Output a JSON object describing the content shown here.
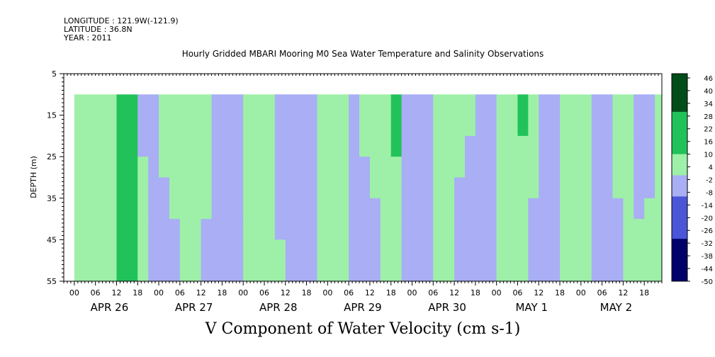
{
  "header": {
    "longitude": "LONGITUDE : 121.9W(-121.9)",
    "latitude": "LATITUDE : 36.8N",
    "year": "YEAR : 2011"
  },
  "title": "Hourly Gridded MBARI Mooring M0 Sea Water Temperature and Salinity Observations",
  "footer_label": "V Component of Water Velocity (cm s-1)",
  "chart_data": {
    "type": "heatmap",
    "title": "Hourly Gridded MBARI Mooring M0 Sea Water Temperature and Salinity Observations",
    "xlabel": "",
    "ylabel": "DEPTH (m)",
    "colorbar_label": "V Component of Water Velocity (cm s-1)",
    "ylim": [
      5,
      55
    ],
    "y_inverted": true,
    "y_ticks": [
      5,
      15,
      25,
      35,
      45,
      55
    ],
    "data_depth_range": [
      10,
      55
    ],
    "x_start": "2011-04-25T21:00",
    "x_end": "2011-05-02T23:00",
    "data_x_start": "2011-04-26T00:00",
    "data_x_end": "2011-05-02T22:00",
    "x_hour_ticks": [
      "00",
      "06",
      "12",
      "18"
    ],
    "x_day_labels": [
      "APR 26",
      "APR 27",
      "APR 28",
      "APR 29",
      "APR 30",
      "MAY  1",
      "MAY  2"
    ],
    "colorbar_levels": [
      48,
      46,
      44,
      42,
      40,
      38,
      36,
      34,
      32,
      30,
      28,
      26,
      24,
      22,
      20,
      18,
      16,
      14,
      12,
      10,
      8,
      6,
      4,
      2,
      0,
      -2,
      -4,
      -6,
      -8,
      -10,
      -12,
      -14,
      -16,
      -18,
      -20,
      -22,
      -24,
      -26,
      -28,
      -30,
      -32,
      -34,
      -36,
      -38,
      -40,
      -42,
      -44,
      -46,
      -48,
      -50
    ],
    "colorbar_tick_labels": [
      "46",
      "40",
      "34",
      "28",
      "22",
      "16",
      "10",
      "4",
      "-2",
      "-8",
      "-14",
      "-20",
      "-26",
      "-32",
      "-38",
      "-44",
      "-50"
    ],
    "colors": {
      "strong_positive": "#004d1a",
      "positive": "#22c25a",
      "weak_positive": "#9ef0a8",
      "weak_negative": "#a9aef5",
      "negative": "#4a55d8",
      "strong_negative": "#00006b"
    },
    "columns": [
      {
        "time": "2011-04-26T00:00",
        "v_surface": 6,
        "v_bottom": 2
      },
      {
        "time": "2011-04-26T03:00",
        "v_surface": 4,
        "v_bottom": 6
      },
      {
        "time": "2011-04-26T06:00",
        "v_surface": 8,
        "v_bottom": 8
      },
      {
        "time": "2011-04-26T09:00",
        "v_surface": 10,
        "v_bottom": 8
      },
      {
        "time": "2011-04-26T12:00",
        "v_surface": 14,
        "v_bottom": 10
      },
      {
        "time": "2011-04-26T15:00",
        "v_surface": 10,
        "v_bottom": 12
      },
      {
        "time": "2011-04-26T18:00",
        "v_surface": -6,
        "v_bottom": 10
      },
      {
        "time": "2011-04-26T21:00",
        "v_surface": -8,
        "v_bottom": -2
      },
      {
        "time": "2011-04-27T00:00",
        "v_surface": 4,
        "v_bottom": -6
      },
      {
        "time": "2011-04-27T03:00",
        "v_surface": 8,
        "v_bottom": -4
      },
      {
        "time": "2011-04-27T06:00",
        "v_surface": 6,
        "v_bottom": 4
      },
      {
        "time": "2011-04-27T09:00",
        "v_surface": 8,
        "v_bottom": 6
      },
      {
        "time": "2011-04-27T12:00",
        "v_surface": 4,
        "v_bottom": -2
      },
      {
        "time": "2011-04-27T15:00",
        "v_surface": -4,
        "v_bottom": -8
      },
      {
        "time": "2011-04-27T18:00",
        "v_surface": -6,
        "v_bottom": -8
      },
      {
        "time": "2011-04-27T21:00",
        "v_surface": -4,
        "v_bottom": -6
      },
      {
        "time": "2011-04-28T00:00",
        "v_surface": 6,
        "v_bottom": 4
      },
      {
        "time": "2011-04-28T03:00",
        "v_surface": 10,
        "v_bottom": 8
      },
      {
        "time": "2011-04-28T06:00",
        "v_surface": 4,
        "v_bottom": 6
      },
      {
        "time": "2011-04-28T09:00",
        "v_surface": -6,
        "v_bottom": 2
      },
      {
        "time": "2011-04-28T12:00",
        "v_surface": -6,
        "v_bottom": -4
      },
      {
        "time": "2011-04-28T15:00",
        "v_surface": -8,
        "v_bottom": -6
      },
      {
        "time": "2011-04-28T18:00",
        "v_surface": -4,
        "v_bottom": -2
      },
      {
        "time": "2011-04-28T21:00",
        "v_surface": 6,
        "v_bottom": 4
      },
      {
        "time": "2011-04-29T00:00",
        "v_surface": 8,
        "v_bottom": 8
      },
      {
        "time": "2011-04-29T03:00",
        "v_surface": 4,
        "v_bottom": 4
      },
      {
        "time": "2011-04-29T06:00",
        "v_surface": -4,
        "v_bottom": -6
      },
      {
        "time": "2011-04-29T09:00",
        "v_surface": 4,
        "v_bottom": -8
      },
      {
        "time": "2011-04-29T12:00",
        "v_surface": 6,
        "v_bottom": -6
      },
      {
        "time": "2011-04-29T15:00",
        "v_surface": 8,
        "v_bottom": 4
      },
      {
        "time": "2011-04-29T18:00",
        "v_surface": 12,
        "v_bottom": 6
      },
      {
        "time": "2011-04-29T21:00",
        "v_surface": -4,
        "v_bottom": -4
      },
      {
        "time": "2011-04-30T00:00",
        "v_surface": -8,
        "v_bottom": -8
      },
      {
        "time": "2011-04-30T03:00",
        "v_surface": -6,
        "v_bottom": -6
      },
      {
        "time": "2011-04-30T06:00",
        "v_surface": 8,
        "v_bottom": 4
      },
      {
        "time": "2011-04-30T09:00",
        "v_surface": 10,
        "v_bottom": 2
      },
      {
        "time": "2011-04-30T12:00",
        "v_surface": 6,
        "v_bottom": -8
      },
      {
        "time": "2011-04-30T15:00",
        "v_surface": 2,
        "v_bottom": -10
      },
      {
        "time": "2011-04-30T18:00",
        "v_surface": -6,
        "v_bottom": -6
      },
      {
        "time": "2011-04-30T21:00",
        "v_surface": -8,
        "v_bottom": -8
      },
      {
        "time": "2011-05-01T00:00",
        "v_surface": 4,
        "v_bottom": 4
      },
      {
        "time": "2011-05-01T03:00",
        "v_surface": 8,
        "v_bottom": 6
      },
      {
        "time": "2011-05-01T06:00",
        "v_surface": 12,
        "v_bottom": 4
      },
      {
        "time": "2011-05-01T09:00",
        "v_surface": 8,
        "v_bottom": -6
      },
      {
        "time": "2011-05-01T12:00",
        "v_surface": -4,
        "v_bottom": -10
      },
      {
        "time": "2011-05-01T15:00",
        "v_surface": -6,
        "v_bottom": -8
      },
      {
        "time": "2011-05-01T18:00",
        "v_surface": 4,
        "v_bottom": 2
      },
      {
        "time": "2011-05-01T21:00",
        "v_surface": 6,
        "v_bottom": 4
      },
      {
        "time": "2011-05-02T00:00",
        "v_surface": 8,
        "v_bottom": 6
      },
      {
        "time": "2011-05-02T03:00",
        "v_surface": -6,
        "v_bottom": -4
      },
      {
        "time": "2011-05-02T06:00",
        "v_surface": -8,
        "v_bottom": -6
      },
      {
        "time": "2011-05-02T09:00",
        "v_surface": 6,
        "v_bottom": -4
      },
      {
        "time": "2011-05-02T12:00",
        "v_surface": 4,
        "v_bottom": 2
      },
      {
        "time": "2011-05-02T15:00",
        "v_surface": -4,
        "v_bottom": 2
      },
      {
        "time": "2011-05-02T18:00",
        "v_surface": -6,
        "v_bottom": 4
      },
      {
        "time": "2011-05-02T21:00",
        "v_surface": 6,
        "v_bottom": 6
      }
    ]
  }
}
